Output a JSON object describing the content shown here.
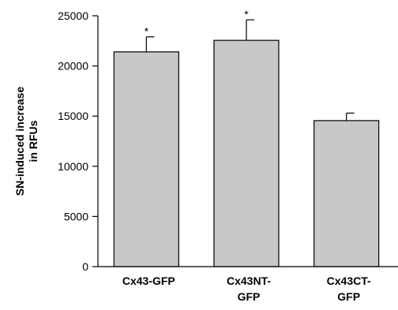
{
  "chart_data": {
    "type": "bar",
    "categories": [
      [
        "Cx43-GFP"
      ],
      [
        "Cx43NT-",
        "GFP"
      ],
      [
        "Cx43CT-",
        "GFP"
      ]
    ],
    "values": [
      21400,
      22550,
      14550
    ],
    "errors": [
      1500,
      2050,
      750
    ],
    "significance": [
      "*",
      "*",
      ""
    ],
    "ylabel": [
      "SN-induced increase",
      "in RFUs"
    ],
    "ylim": [
      0,
      25000
    ],
    "yticks": [
      0,
      5000,
      10000,
      15000,
      20000,
      25000
    ],
    "bar_color": "#c8c8c8",
    "grid": false,
    "legend": "none"
  }
}
